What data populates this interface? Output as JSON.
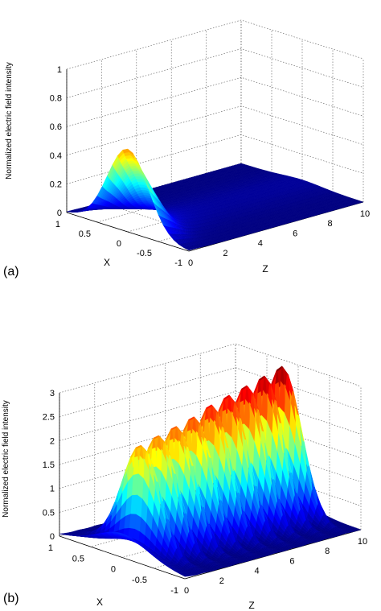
{
  "figure": {
    "panels": [
      {
        "label": "(a)",
        "chart_data": {
          "type": "surface",
          "zlabel": "Normalized electric field intensity",
          "xlabel": "X",
          "ylabel": "Z",
          "x_range": [
            -1,
            1
          ],
          "z_range": [
            0,
            10
          ],
          "intensity_range": [
            0,
            1
          ],
          "x_ticks": [
            "1",
            "0.5",
            "0",
            "-0.5",
            "-1"
          ],
          "z_ticks": [
            "0",
            "2",
            "4",
            "6",
            "8",
            "10"
          ],
          "intensity_ticks": [
            "0",
            "0.2",
            "0.4",
            "0.6",
            "0.8",
            "1"
          ],
          "peak_intensity": 0.78,
          "colormap": "jet",
          "grid": true
        }
      },
      {
        "label": "(b)",
        "chart_data": {
          "type": "surface",
          "zlabel": "Normalized electric field intensity",
          "xlabel": "X",
          "ylabel": "Z",
          "x_range": [
            -1,
            1
          ],
          "z_range": [
            0,
            10
          ],
          "intensity_range": [
            0,
            3
          ],
          "x_ticks": [
            "1",
            "0.5",
            "0",
            "-0.5",
            "-1"
          ],
          "z_ticks": [
            "0",
            "2",
            "4",
            "6",
            "8",
            "10"
          ],
          "intensity_ticks": [
            "0",
            "0.5",
            "1",
            "1.5",
            "2",
            "2.5",
            "3"
          ],
          "peak_positions_z": [
            1.1,
            2.1,
            3.1,
            4.1,
            5.1,
            6.1,
            7.1,
            8.1,
            9.1
          ],
          "peak_intensities": [
            2.2,
            2.35,
            2.45,
            2.55,
            2.7,
            2.8,
            2.9,
            3.0,
            3.1
          ],
          "colormap": "jet",
          "grid": true
        }
      }
    ]
  }
}
